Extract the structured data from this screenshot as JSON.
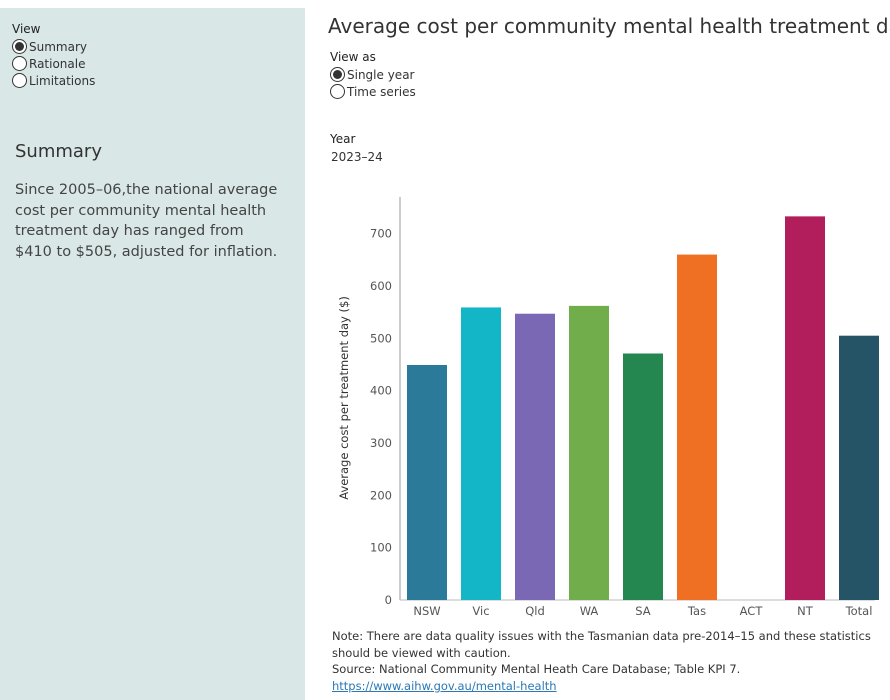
{
  "sidebar": {
    "view_label": "View",
    "options": [
      {
        "label": "Summary",
        "selected": true
      },
      {
        "label": "Rationale",
        "selected": false
      },
      {
        "label": "Limitations",
        "selected": false
      }
    ],
    "heading": "Summary",
    "text": "Since 2005–06,the national average cost per community mental health treatment day has ranged from $410 to $505, adjusted for inflation."
  },
  "main": {
    "title": "Average cost per community mental health treatment day",
    "view_as_label": "View as",
    "view_as_options": [
      {
        "label": "Single year",
        "selected": true
      },
      {
        "label": "Time series",
        "selected": false
      }
    ],
    "year_label": "Year",
    "year_value": "2023–24",
    "note": "Note: There are data quality issues with the Tasmanian data pre-2014–15 and these statistics should be viewed with caution.",
    "source": "Source: National Community Mental Heath Care Database; Table KPI 7.",
    "link": "https://www.aihw.gov.au/mental-health"
  },
  "chart_data": {
    "type": "bar",
    "ylabel": "Average cost per treatment day ($)",
    "xlabel": "",
    "ylim": [
      0,
      770
    ],
    "yticks": [
      0,
      100,
      200,
      300,
      400,
      500,
      600,
      700
    ],
    "grid": false,
    "categories": [
      "NSW",
      "Vic",
      "Qld",
      "WA",
      "SA",
      "Tas",
      "ACT",
      "NT",
      "Total"
    ],
    "values": [
      449,
      559,
      547,
      562,
      471,
      660,
      null,
      733,
      505
    ],
    "colors": [
      "#2b7a99",
      "#13b6c6",
      "#7b68b5",
      "#72ad4b",
      "#23874f",
      "#f07023",
      null,
      "#b21d5b",
      "#245466"
    ]
  }
}
